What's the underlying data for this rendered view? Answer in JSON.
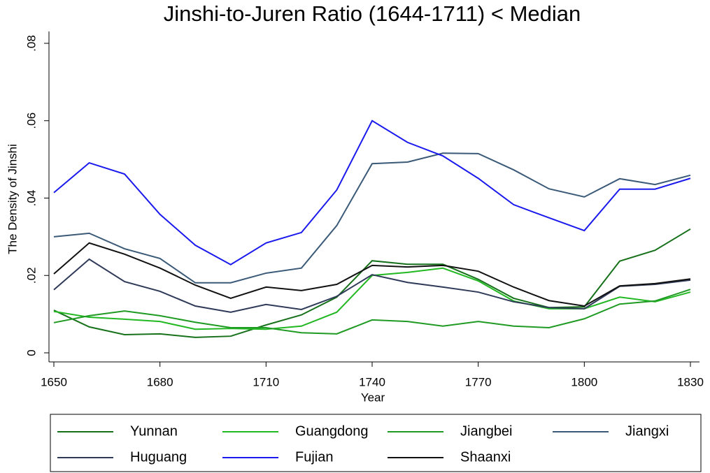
{
  "chart_data": {
    "type": "line",
    "title": "Jinshi-to-Juren Ratio (1644-1711) < Median",
    "x_label": "Year",
    "y_label": "The Density of Jinshi",
    "x": [
      1650,
      1660,
      1670,
      1680,
      1690,
      1700,
      1710,
      1720,
      1730,
      1740,
      1750,
      1760,
      1770,
      1780,
      1790,
      1800,
      1810,
      1820,
      1830
    ],
    "xlim": [
      1650,
      1830
    ],
    "xticks": [
      1650,
      1680,
      1710,
      1740,
      1770,
      1800,
      1830
    ],
    "ylim": [
      0,
      0.08
    ],
    "yticks": [
      0,
      {
        "value": 0.02,
        "label": ".02"
      },
      {
        "value": 0.04,
        "label": ".04"
      },
      {
        "value": 0.06,
        "label": ".06"
      },
      {
        "value": 0.08,
        "label": ".08"
      }
    ],
    "series": [
      {
        "name": "Yunnan",
        "color": "#17711b",
        "values": [
          0.011,
          0.0067,
          0.0047,
          0.0049,
          0.004,
          0.0043,
          0.0072,
          0.0098,
          0.0144,
          0.0238,
          0.0229,
          0.0229,
          0.019,
          0.0141,
          0.0117,
          0.0119,
          0.0237,
          0.0265,
          0.032
        ]
      },
      {
        "name": "Guangdong",
        "color": "#22b822",
        "values": [
          0.0107,
          0.0092,
          0.0087,
          0.0081,
          0.0061,
          0.0063,
          0.0061,
          0.0069,
          0.0105,
          0.02,
          0.0208,
          0.0219,
          0.0186,
          0.0134,
          0.0114,
          0.0114,
          0.0144,
          0.0132,
          0.0157
        ]
      },
      {
        "name": "Jiangbei",
        "color": "#1f9a22",
        "values": [
          0.0078,
          0.0096,
          0.0108,
          0.0096,
          0.0079,
          0.0065,
          0.0065,
          0.0052,
          0.0049,
          0.0085,
          0.0081,
          0.0069,
          0.0081,
          0.0069,
          0.0065,
          0.0088,
          0.0126,
          0.0134,
          0.0164
        ]
      },
      {
        "name": "Jiangxi",
        "color": "#3a5a78",
        "values": [
          0.03,
          0.0309,
          0.0269,
          0.0244,
          0.0181,
          0.0181,
          0.0206,
          0.0219,
          0.0329,
          0.0489,
          0.0493,
          0.0516,
          0.0515,
          0.0473,
          0.0424,
          0.0403,
          0.045,
          0.0435,
          0.0459
        ]
      },
      {
        "name": "Huguang",
        "color": "#2f3a58",
        "values": [
          0.0163,
          0.0242,
          0.0184,
          0.0159,
          0.0121,
          0.0105,
          0.0125,
          0.0112,
          0.0146,
          0.0202,
          0.0182,
          0.017,
          0.0157,
          0.0132,
          0.0117,
          0.0114,
          0.0172,
          0.0177,
          0.0188
        ]
      },
      {
        "name": "Fujian",
        "color": "#1a1aee",
        "values": [
          0.0414,
          0.0491,
          0.0462,
          0.0358,
          0.0278,
          0.0228,
          0.0284,
          0.0311,
          0.0421,
          0.06,
          0.0544,
          0.0509,
          0.0451,
          0.0383,
          0.0349,
          0.0316,
          0.0423,
          0.0423,
          0.0451
        ]
      },
      {
        "name": "Shaanxi",
        "color": "#111111",
        "values": [
          0.0204,
          0.0284,
          0.0255,
          0.0219,
          0.0175,
          0.0141,
          0.017,
          0.0161,
          0.0177,
          0.0226,
          0.0222,
          0.0226,
          0.0211,
          0.017,
          0.0135,
          0.0121,
          0.0173,
          0.0179,
          0.0191
        ]
      }
    ]
  }
}
